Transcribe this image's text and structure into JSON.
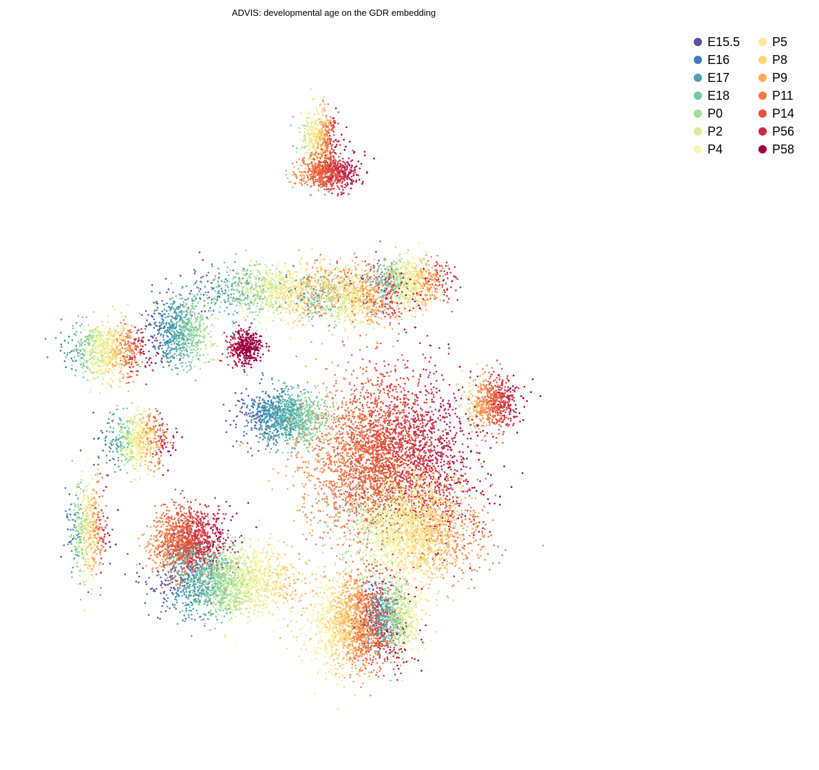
{
  "chart_data": {
    "type": "scatter",
    "title": "ADVIS: developmental age on the GDR embedding",
    "xlabel": "",
    "ylabel": "",
    "axes_visible": false,
    "grid": false,
    "legend_placement": "top-right",
    "series": [
      {
        "name": "E15.5",
        "color": "#5e4fa2"
      },
      {
        "name": "E16",
        "color": "#3e7fb8"
      },
      {
        "name": "E17",
        "color": "#4aa3ad"
      },
      {
        "name": "E18",
        "color": "#76c8a5"
      },
      {
        "name": "P0",
        "color": "#a8dc9e"
      },
      {
        "name": "P2",
        "color": "#d4ee9a"
      },
      {
        "name": "P4",
        "color": "#f3faad"
      },
      {
        "name": "P5",
        "color": "#fdeb98"
      },
      {
        "name": "P8",
        "color": "#fed479"
      },
      {
        "name": "P9",
        "color": "#fcad5f"
      },
      {
        "name": "P11",
        "color": "#f57a48"
      },
      {
        "name": "P14",
        "color": "#e0533f"
      },
      {
        "name": "P56",
        "color": "#c62a4a"
      },
      {
        "name": "P58",
        "color": "#9e0142"
      }
    ],
    "xlim": [
      0,
      1
    ],
    "ylim": [
      0,
      1
    ],
    "clusters": [
      {
        "cx": 0.453,
        "cy": 0.875,
        "rx": 0.03,
        "ry": 0.04,
        "young": 0.25,
        "old": 1.0,
        "n": 500
      },
      {
        "cx": 0.465,
        "cy": 0.823,
        "rx": 0.048,
        "ry": 0.025,
        "young": 0.7,
        "old": 1.0,
        "n": 700
      },
      {
        "cx": 0.392,
        "cy": 0.648,
        "rx": 0.13,
        "ry": 0.04,
        "young": 0.0,
        "old": 0.95,
        "n": 1400
      },
      {
        "cx": 0.595,
        "cy": 0.662,
        "rx": 0.06,
        "ry": 0.035,
        "young": 0.0,
        "old": 0.95,
        "n": 900
      },
      {
        "cx": 0.51,
        "cy": 0.64,
        "rx": 0.08,
        "ry": 0.045,
        "young": 0.1,
        "old": 1.0,
        "n": 900
      },
      {
        "cx": 0.115,
        "cy": 0.56,
        "rx": 0.06,
        "ry": 0.04,
        "young": 0.1,
        "old": 1.0,
        "n": 900
      },
      {
        "cx": 0.23,
        "cy": 0.59,
        "rx": 0.05,
        "ry": 0.05,
        "young": 0.0,
        "old": 0.4,
        "n": 700
      },
      {
        "cx": 0.333,
        "cy": 0.566,
        "rx": 0.025,
        "ry": 0.025,
        "young": 0.95,
        "old": 1.0,
        "n": 400
      },
      {
        "cx": 0.73,
        "cy": 0.485,
        "rx": 0.04,
        "ry": 0.04,
        "young": 0.6,
        "old": 1.0,
        "n": 600
      },
      {
        "cx": 0.16,
        "cy": 0.43,
        "rx": 0.05,
        "ry": 0.04,
        "young": 0.0,
        "old": 1.0,
        "n": 700
      },
      {
        "cx": 0.08,
        "cy": 0.3,
        "rx": 0.03,
        "ry": 0.07,
        "young": 0.0,
        "old": 1.0,
        "n": 600
      },
      {
        "cx": 0.4,
        "cy": 0.465,
        "rx": 0.07,
        "ry": 0.04,
        "young": 0.0,
        "old": 0.35,
        "n": 1100
      },
      {
        "cx": 0.56,
        "cy": 0.4,
        "rx": 0.13,
        "ry": 0.12,
        "young": 0.7,
        "old": 1.0,
        "n": 3500
      },
      {
        "cx": 0.6,
        "cy": 0.3,
        "rx": 0.1,
        "ry": 0.08,
        "young": 0.3,
        "old": 0.8,
        "n": 2200
      },
      {
        "cx": 0.24,
        "cy": 0.28,
        "rx": 0.06,
        "ry": 0.05,
        "young": 0.7,
        "old": 1.0,
        "n": 1300
      },
      {
        "cx": 0.31,
        "cy": 0.22,
        "rx": 0.1,
        "ry": 0.05,
        "young": 0.0,
        "old": 0.7,
        "n": 2000
      },
      {
        "cx": 0.51,
        "cy": 0.16,
        "rx": 0.07,
        "ry": 0.07,
        "young": 0.4,
        "old": 1.0,
        "n": 1800
      },
      {
        "cx": 0.575,
        "cy": 0.17,
        "rx": 0.04,
        "ry": 0.05,
        "young": 0.0,
        "old": 0.6,
        "n": 700
      }
    ]
  }
}
